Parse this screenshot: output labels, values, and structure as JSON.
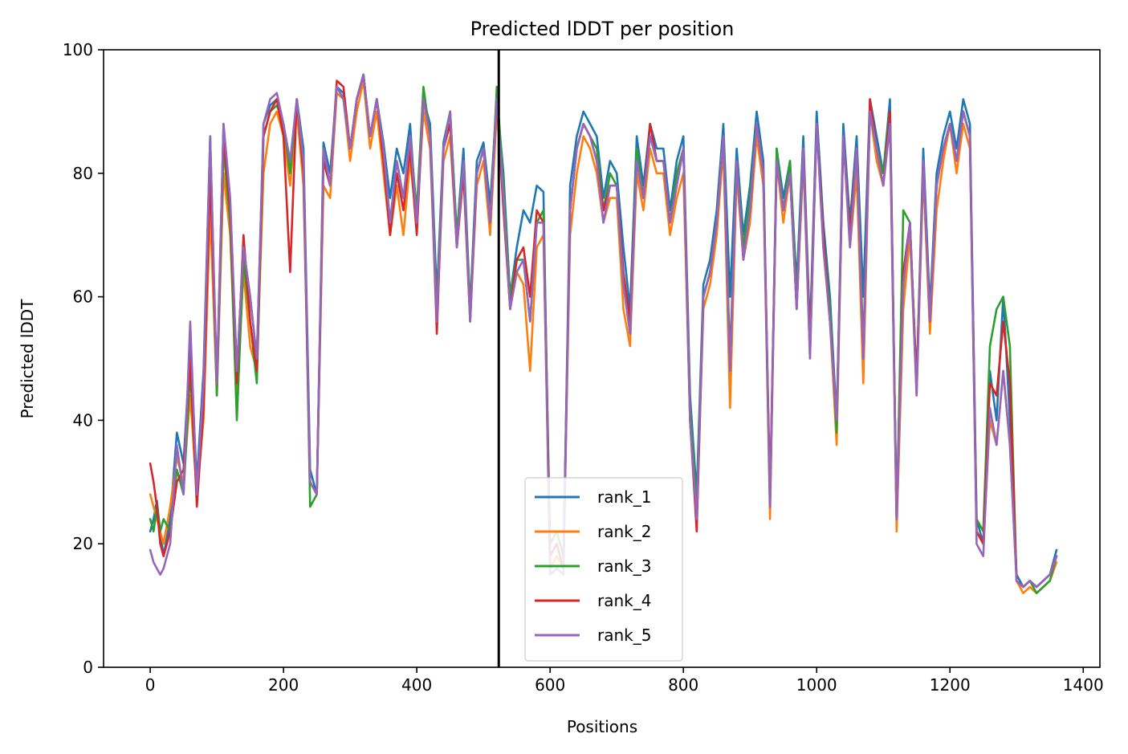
{
  "chart_data": {
    "type": "line",
    "title": "Predicted lDDT per position",
    "xlabel": "Positions",
    "ylabel": "Predicted lDDT",
    "xlim": [
      -70,
      1425
    ],
    "ylim": [
      0,
      100
    ],
    "xticks": [
      0,
      200,
      400,
      600,
      800,
      1000,
      1200,
      1400
    ],
    "yticks": [
      0,
      20,
      40,
      60,
      80,
      100
    ],
    "vline_x": 523,
    "grid": false,
    "legend_position": "lower center",
    "x": [
      0,
      5,
      10,
      15,
      20,
      30,
      40,
      50,
      60,
      70,
      80,
      90,
      100,
      110,
      120,
      130,
      140,
      150,
      160,
      170,
      180,
      190,
      200,
      210,
      220,
      230,
      240,
      250,
      260,
      270,
      280,
      290,
      300,
      310,
      320,
      330,
      340,
      350,
      360,
      370,
      380,
      390,
      400,
      410,
      420,
      430,
      440,
      450,
      460,
      470,
      480,
      490,
      500,
      510,
      520,
      530,
      540,
      550,
      560,
      570,
      580,
      590,
      600,
      610,
      620,
      630,
      640,
      650,
      660,
      670,
      680,
      690,
      700,
      710,
      720,
      730,
      740,
      750,
      760,
      770,
      780,
      790,
      800,
      810,
      820,
      830,
      840,
      850,
      860,
      870,
      880,
      890,
      900,
      910,
      920,
      930,
      940,
      950,
      960,
      970,
      980,
      990,
      1000,
      1010,
      1020,
      1030,
      1040,
      1050,
      1060,
      1070,
      1080,
      1090,
      1100,
      1110,
      1120,
      1130,
      1140,
      1150,
      1160,
      1170,
      1180,
      1190,
      1200,
      1210,
      1220,
      1230,
      1240,
      1250,
      1260,
      1270,
      1280,
      1290,
      1300,
      1310,
      1320,
      1330,
      1340,
      1350,
      1360
    ],
    "series": [
      {
        "name": "rank_1",
        "color": "#1f77b4",
        "values": [
          22,
          24,
          27,
          22,
          18,
          24,
          38,
          33,
          52,
          30,
          48,
          86,
          45,
          88,
          75,
          48,
          68,
          60,
          50,
          88,
          91,
          92,
          88,
          80,
          92,
          84,
          32,
          28,
          85,
          80,
          94,
          93,
          84,
          92,
          96,
          86,
          92,
          85,
          76,
          84,
          80,
          88,
          72,
          92,
          88,
          60,
          85,
          90,
          70,
          84,
          58,
          82,
          85,
          75,
          92,
          80,
          60,
          68,
          74,
          72,
          78,
          77,
          16,
          18,
          16,
          78,
          86,
          90,
          88,
          86,
          76,
          82,
          80,
          68,
          58,
          86,
          78,
          88,
          84,
          84,
          74,
          82,
          86,
          44,
          28,
          62,
          66,
          74,
          88,
          60,
          84,
          70,
          78,
          90,
          82,
          26,
          84,
          76,
          82,
          62,
          86,
          54,
          90,
          72,
          60,
          40,
          88,
          72,
          86,
          60,
          92,
          86,
          80,
          92,
          24,
          62,
          72,
          46,
          84,
          58,
          80,
          86,
          90,
          84,
          92,
          88,
          24,
          20,
          48,
          40,
          60,
          40,
          15,
          13,
          14,
          13,
          14,
          15,
          19
        ]
      },
      {
        "name": "rank_2",
        "color": "#ff7f0e",
        "values": [
          28,
          26,
          24,
          22,
          20,
          26,
          34,
          30,
          44,
          28,
          40,
          74,
          44,
          80,
          70,
          44,
          64,
          52,
          48,
          80,
          88,
          90,
          86,
          78,
          90,
          78,
          30,
          28,
          78,
          76,
          93,
          92,
          82,
          90,
          95,
          84,
          90,
          80,
          70,
          78,
          70,
          82,
          72,
          90,
          84,
          56,
          82,
          86,
          68,
          80,
          56,
          78,
          82,
          70,
          90,
          76,
          58,
          64,
          62,
          48,
          68,
          70,
          16,
          18,
          16,
          70,
          80,
          86,
          84,
          80,
          72,
          76,
          76,
          58,
          52,
          80,
          74,
          84,
          80,
          80,
          70,
          76,
          80,
          40,
          24,
          58,
          62,
          70,
          84,
          42,
          80,
          66,
          72,
          86,
          78,
          24,
          82,
          72,
          80,
          58,
          82,
          50,
          88,
          68,
          56,
          36,
          86,
          68,
          80,
          46,
          90,
          82,
          78,
          88,
          22,
          58,
          70,
          44,
          80,
          54,
          74,
          82,
          88,
          80,
          88,
          84,
          22,
          20,
          40,
          36,
          48,
          36,
          14,
          12,
          13,
          12,
          13,
          14,
          17
        ]
      },
      {
        "name": "rank_3",
        "color": "#2ca02c",
        "values": [
          24,
          22,
          26,
          22,
          24,
          22,
          32,
          28,
          48,
          28,
          44,
          82,
          44,
          84,
          72,
          40,
          66,
          56,
          46,
          86,
          90,
          91,
          88,
          80,
          92,
          82,
          26,
          28,
          82,
          78,
          94,
          92,
          84,
          92,
          96,
          86,
          92,
          84,
          72,
          82,
          76,
          86,
          74,
          94,
          86,
          58,
          84,
          90,
          70,
          82,
          58,
          80,
          84,
          72,
          94,
          78,
          60,
          66,
          66,
          56,
          72,
          74,
          20,
          22,
          18,
          74,
          84,
          88,
          86,
          84,
          74,
          80,
          78,
          62,
          54,
          84,
          76,
          86,
          82,
          82,
          72,
          80,
          84,
          42,
          26,
          60,
          64,
          72,
          86,
          50,
          82,
          68,
          76,
          88,
          80,
          26,
          84,
          74,
          82,
          60,
          84,
          52,
          88,
          70,
          58,
          38,
          86,
          70,
          84,
          52,
          90,
          84,
          80,
          90,
          24,
          74,
          72,
          46,
          82,
          56,
          78,
          84,
          88,
          82,
          90,
          86,
          24,
          22,
          52,
          58,
          60,
          52,
          14,
          13,
          14,
          12,
          13,
          14,
          18
        ]
      },
      {
        "name": "rank_4",
        "color": "#d62728",
        "values": [
          33,
          30,
          26,
          20,
          18,
          22,
          30,
          32,
          50,
          26,
          42,
          80,
          46,
          86,
          74,
          46,
          70,
          56,
          48,
          86,
          90,
          92,
          86,
          64,
          92,
          80,
          30,
          28,
          82,
          78,
          95,
          94,
          84,
          92,
          96,
          86,
          92,
          82,
          70,
          80,
          74,
          84,
          70,
          92,
          86,
          54,
          84,
          88,
          68,
          80,
          56,
          80,
          84,
          72,
          92,
          74,
          58,
          66,
          68,
          60,
          74,
          72,
          18,
          20,
          16,
          74,
          84,
          88,
          86,
          82,
          74,
          78,
          78,
          64,
          56,
          82,
          76,
          88,
          82,
          82,
          72,
          78,
          84,
          40,
          22,
          60,
          64,
          72,
          86,
          48,
          82,
          66,
          74,
          88,
          80,
          28,
          82,
          74,
          80,
          58,
          84,
          52,
          88,
          70,
          56,
          40,
          86,
          70,
          84,
          50,
          92,
          84,
          78,
          90,
          24,
          64,
          72,
          46,
          82,
          56,
          78,
          84,
          88,
          82,
          90,
          86,
          22,
          20,
          46,
          44,
          56,
          46,
          14,
          13,
          14,
          13,
          14,
          15,
          18
        ]
      },
      {
        "name": "rank_5",
        "color": "#9467bd",
        "values": [
          19,
          17,
          16,
          15,
          16,
          20,
          36,
          28,
          56,
          28,
          46,
          86,
          46,
          88,
          76,
          48,
          68,
          60,
          50,
          88,
          92,
          93,
          88,
          82,
          92,
          82,
          30,
          28,
          84,
          78,
          94,
          92,
          84,
          92,
          96,
          86,
          92,
          84,
          72,
          82,
          76,
          86,
          72,
          92,
          86,
          56,
          84,
          90,
          68,
          82,
          56,
          80,
          84,
          72,
          92,
          76,
          58,
          64,
          66,
          56,
          72,
          72,
          15,
          16,
          15,
          74,
          84,
          88,
          86,
          82,
          72,
          78,
          78,
          62,
          54,
          82,
          76,
          86,
          82,
          82,
          72,
          78,
          84,
          40,
          24,
          60,
          64,
          72,
          86,
          48,
          82,
          66,
          74,
          88,
          80,
          26,
          82,
          74,
          80,
          58,
          84,
          50,
          88,
          68,
          56,
          40,
          86,
          68,
          84,
          50,
          90,
          84,
          78,
          88,
          24,
          62,
          72,
          44,
          82,
          56,
          78,
          84,
          88,
          82,
          90,
          86,
          20,
          18,
          42,
          36,
          48,
          36,
          14,
          13,
          14,
          13,
          14,
          15,
          18
        ]
      }
    ]
  }
}
